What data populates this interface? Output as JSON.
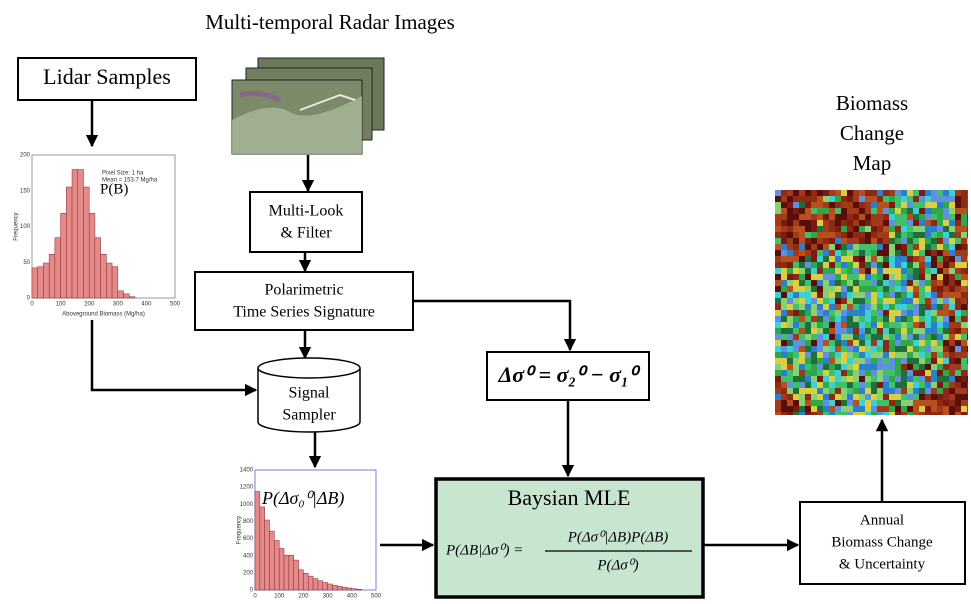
{
  "header": {
    "title": "Multi-temporal Radar Images"
  },
  "lidar": {
    "label": "Lidar Samples"
  },
  "histogram_lidar": {
    "annotation": "P(B)",
    "legend": [
      "Pixel Size: 1 ha",
      "Mean = 153.7 Mg/ha"
    ],
    "x_label": "Aboveground Biomass (Mg/ha)",
    "y_label": "Frequency",
    "x_ticks": [
      "0",
      "100",
      "200",
      "300",
      "400",
      "500"
    ],
    "y_ticks": [
      "0",
      "50",
      "100",
      "150",
      "200"
    ]
  },
  "multilook": {
    "lines": [
      "Multi-Look",
      "& Filter"
    ]
  },
  "polarimetric": {
    "lines": [
      "Polarimetric",
      "Time Series Signature"
    ]
  },
  "sampler": {
    "lines": [
      "Signal",
      "Sampler"
    ]
  },
  "delta": {
    "formula": "Δσ⁰ = σ₂⁰ − σ₁⁰"
  },
  "histogram_sampler": {
    "annotation": "P(Δσ₀⁰|ΔB)",
    "y_label": "Frequency",
    "x_ticks": [
      "0",
      "100",
      "200",
      "300",
      "400",
      "500"
    ],
    "y_ticks": [
      "0",
      "200",
      "400",
      "600",
      "800",
      "1000",
      "1200",
      "1400"
    ]
  },
  "mle": {
    "title": "Baysian MLE",
    "lhs": "P(ΔB|Δσ⁰) =",
    "numerator": "P(Δσ⁰|ΔB)P(ΔB)",
    "denominator": "P(Δσ⁰)"
  },
  "annual": {
    "lines": [
      "Annual",
      "Biomass Change",
      "& Uncertainty"
    ]
  },
  "map": {
    "lines": [
      "Biomass",
      "Change",
      "Map"
    ]
  }
}
